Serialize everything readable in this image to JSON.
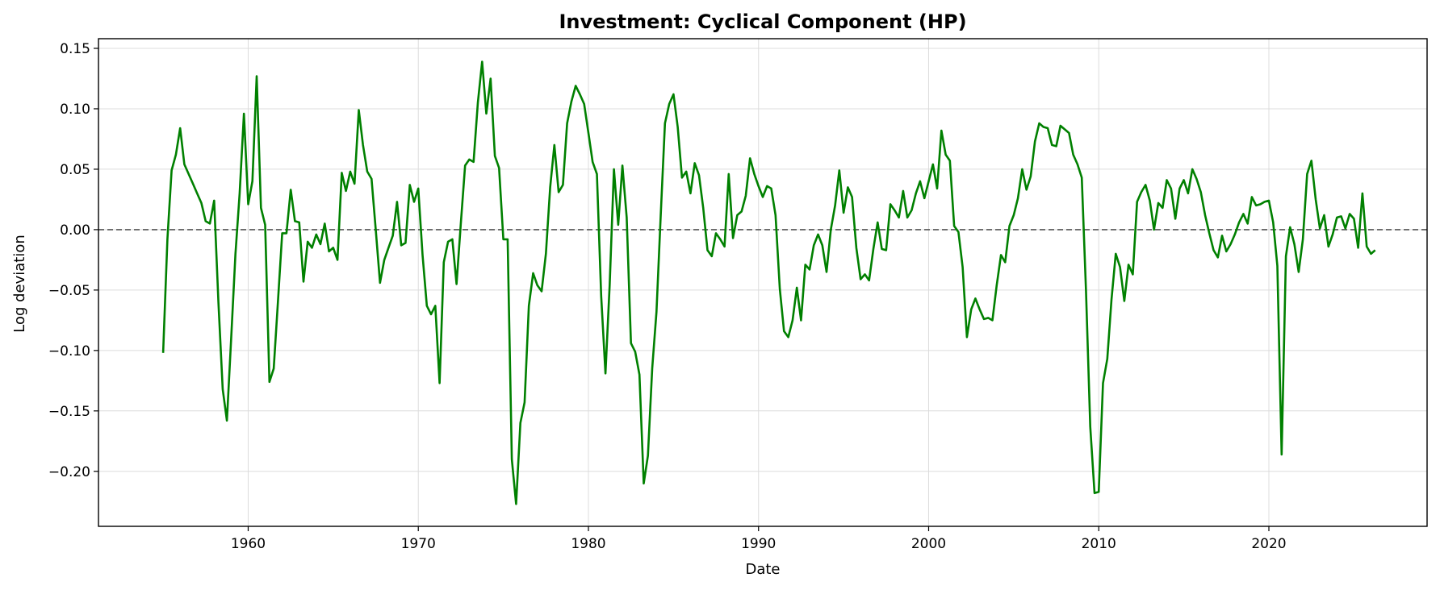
{
  "chart_data": {
    "type": "line",
    "title": "Investment: Cyclical Component (HP)",
    "xlabel": "Date",
    "ylabel": "Log deviation",
    "xlim": [
      1951.2,
      2029.3
    ],
    "ylim": [
      -0.2455,
      0.158
    ],
    "x_ticks": [
      1960,
      1970,
      1980,
      1990,
      2000,
      2010,
      2020
    ],
    "x_tick_labels": [
      "1960",
      "1970",
      "1980",
      "1990",
      "2000",
      "2010",
      "2020"
    ],
    "y_ticks": [
      -0.2,
      -0.15,
      -0.1,
      -0.05,
      0.0,
      0.05,
      0.1,
      0.15
    ],
    "y_tick_labels": [
      "−0.20",
      "−0.15",
      "−0.10",
      "−0.05",
      "0.00",
      "0.05",
      "0.10",
      "0.15"
    ],
    "grid": true,
    "zero_line": {
      "y": 0,
      "style": "dashed",
      "color": "#555555"
    },
    "line_color": "#008000",
    "series": [
      {
        "points": [
          [
            1955.0,
            -0.102
          ],
          [
            1955.25,
            -0.008
          ],
          [
            1955.5,
            0.049
          ],
          [
            1955.75,
            0.062
          ],
          [
            1956.0,
            0.084
          ],
          [
            1956.25,
            0.054
          ],
          [
            1956.5,
            0.046
          ],
          [
            1956.75,
            0.038
          ],
          [
            1957.0,
            0.03
          ],
          [
            1957.25,
            0.022
          ],
          [
            1957.5,
            0.007
          ],
          [
            1957.75,
            0.005
          ],
          [
            1958.0,
            0.024
          ],
          [
            1958.25,
            -0.06
          ],
          [
            1958.5,
            -0.132
          ],
          [
            1958.75,
            -0.158
          ],
          [
            1959.0,
            -0.09
          ],
          [
            1959.25,
            -0.02
          ],
          [
            1959.5,
            0.03
          ],
          [
            1959.75,
            0.096
          ],
          [
            1960.0,
            0.021
          ],
          [
            1960.25,
            0.04
          ],
          [
            1960.5,
            0.127
          ],
          [
            1960.75,
            0.018
          ],
          [
            1961.0,
            0.004
          ],
          [
            1961.25,
            -0.126
          ],
          [
            1961.5,
            -0.115
          ],
          [
            1961.75,
            -0.06
          ],
          [
            1962.0,
            -0.003
          ],
          [
            1962.25,
            -0.003
          ],
          [
            1962.5,
            0.033
          ],
          [
            1962.75,
            0.007
          ],
          [
            1963.0,
            0.006
          ],
          [
            1963.25,
            -0.043
          ],
          [
            1963.5,
            -0.01
          ],
          [
            1963.75,
            -0.015
          ],
          [
            1964.0,
            -0.004
          ],
          [
            1964.25,
            -0.012
          ],
          [
            1964.5,
            0.005
          ],
          [
            1964.75,
            -0.018
          ],
          [
            1965.0,
            -0.015
          ],
          [
            1965.25,
            -0.025
          ],
          [
            1965.5,
            0.047
          ],
          [
            1965.75,
            0.032
          ],
          [
            1966.0,
            0.048
          ],
          [
            1966.25,
            0.038
          ],
          [
            1966.5,
            0.099
          ],
          [
            1966.75,
            0.07
          ],
          [
            1967.0,
            0.048
          ],
          [
            1967.25,
            0.042
          ],
          [
            1967.5,
            0.0
          ],
          [
            1967.75,
            -0.044
          ],
          [
            1968.0,
            -0.025
          ],
          [
            1968.25,
            -0.015
          ],
          [
            1968.5,
            -0.005
          ],
          [
            1968.75,
            0.023
          ],
          [
            1969.0,
            -0.013
          ],
          [
            1969.25,
            -0.011
          ],
          [
            1969.5,
            0.037
          ],
          [
            1969.75,
            0.023
          ],
          [
            1970.0,
            0.034
          ],
          [
            1970.25,
            -0.021
          ],
          [
            1970.5,
            -0.063
          ],
          [
            1970.75,
            -0.07
          ],
          [
            1971.0,
            -0.063
          ],
          [
            1971.25,
            -0.127
          ],
          [
            1971.5,
            -0.027
          ],
          [
            1971.75,
            -0.01
          ],
          [
            1972.0,
            -0.008
          ],
          [
            1972.25,
            -0.045
          ],
          [
            1972.5,
            0.005
          ],
          [
            1972.75,
            0.053
          ],
          [
            1973.0,
            0.058
          ],
          [
            1973.25,
            0.056
          ],
          [
            1973.5,
            0.105
          ],
          [
            1973.75,
            0.139
          ],
          [
            1974.0,
            0.096
          ],
          [
            1974.25,
            0.125
          ],
          [
            1974.5,
            0.061
          ],
          [
            1974.75,
            0.051
          ],
          [
            1975.0,
            -0.008
          ],
          [
            1975.25,
            -0.008
          ],
          [
            1975.5,
            -0.19
          ],
          [
            1975.75,
            -0.227
          ],
          [
            1976.0,
            -0.16
          ],
          [
            1976.25,
            -0.143
          ],
          [
            1976.5,
            -0.063
          ],
          [
            1976.75,
            -0.036
          ],
          [
            1977.0,
            -0.046
          ],
          [
            1977.25,
            -0.051
          ],
          [
            1977.5,
            -0.02
          ],
          [
            1977.75,
            0.035
          ],
          [
            1978.0,
            0.07
          ],
          [
            1978.25,
            0.031
          ],
          [
            1978.5,
            0.037
          ],
          [
            1978.75,
            0.088
          ],
          [
            1979.0,
            0.106
          ],
          [
            1979.25,
            0.119
          ],
          [
            1979.5,
            0.112
          ],
          [
            1979.75,
            0.104
          ],
          [
            1980.0,
            0.08
          ],
          [
            1980.25,
            0.056
          ],
          [
            1980.5,
            0.046
          ],
          [
            1980.75,
            -0.055
          ],
          [
            1981.0,
            -0.119
          ],
          [
            1981.25,
            -0.046
          ],
          [
            1981.5,
            0.05
          ],
          [
            1981.75,
            0.004
          ],
          [
            1982.0,
            0.053
          ],
          [
            1982.25,
            0.01
          ],
          [
            1982.5,
            -0.094
          ],
          [
            1982.75,
            -0.101
          ],
          [
            1983.0,
            -0.12
          ],
          [
            1983.25,
            -0.21
          ],
          [
            1983.5,
            -0.187
          ],
          [
            1983.75,
            -0.115
          ],
          [
            1984.0,
            -0.068
          ],
          [
            1984.25,
            0.011
          ],
          [
            1984.5,
            0.088
          ],
          [
            1984.75,
            0.104
          ],
          [
            1985.0,
            0.112
          ],
          [
            1985.25,
            0.085
          ],
          [
            1985.5,
            0.043
          ],
          [
            1985.75,
            0.048
          ],
          [
            1986.0,
            0.03
          ],
          [
            1986.25,
            0.055
          ],
          [
            1986.5,
            0.045
          ],
          [
            1986.75,
            0.018
          ],
          [
            1987.0,
            -0.017
          ],
          [
            1987.25,
            -0.022
          ],
          [
            1987.5,
            -0.003
          ],
          [
            1987.75,
            -0.008
          ],
          [
            1988.0,
            -0.014
          ],
          [
            1988.25,
            0.046
          ],
          [
            1988.5,
            -0.007
          ],
          [
            1988.75,
            0.012
          ],
          [
            1989.0,
            0.015
          ],
          [
            1989.25,
            0.028
          ],
          [
            1989.5,
            0.059
          ],
          [
            1989.75,
            0.046
          ],
          [
            1990.0,
            0.036
          ],
          [
            1990.25,
            0.027
          ],
          [
            1990.5,
            0.036
          ],
          [
            1990.75,
            0.034
          ],
          [
            1991.0,
            0.012
          ],
          [
            1991.25,
            -0.049
          ],
          [
            1991.5,
            -0.084
          ],
          [
            1991.75,
            -0.089
          ],
          [
            1992.0,
            -0.075
          ],
          [
            1992.25,
            -0.048
          ],
          [
            1992.5,
            -0.075
          ],
          [
            1992.75,
            -0.029
          ],
          [
            1993.0,
            -0.033
          ],
          [
            1993.25,
            -0.013
          ],
          [
            1993.5,
            -0.004
          ],
          [
            1993.75,
            -0.013
          ],
          [
            1994.0,
            -0.035
          ],
          [
            1994.25,
            0.0
          ],
          [
            1994.5,
            0.02
          ],
          [
            1994.75,
            0.049
          ],
          [
            1995.0,
            0.014
          ],
          [
            1995.25,
            0.035
          ],
          [
            1995.5,
            0.027
          ],
          [
            1995.75,
            -0.015
          ],
          [
            1996.0,
            -0.041
          ],
          [
            1996.25,
            -0.037
          ],
          [
            1996.5,
            -0.042
          ],
          [
            1996.75,
            -0.016
          ],
          [
            1997.0,
            0.006
          ],
          [
            1997.25,
            -0.016
          ],
          [
            1997.5,
            -0.017
          ],
          [
            1997.75,
            0.021
          ],
          [
            1998.0,
            0.016
          ],
          [
            1998.25,
            0.01
          ],
          [
            1998.5,
            0.032
          ],
          [
            1998.75,
            0.01
          ],
          [
            1999.0,
            0.016
          ],
          [
            1999.25,
            0.03
          ],
          [
            1999.5,
            0.04
          ],
          [
            1999.75,
            0.026
          ],
          [
            2000.0,
            0.04
          ],
          [
            2000.25,
            0.054
          ],
          [
            2000.5,
            0.034
          ],
          [
            2000.75,
            0.082
          ],
          [
            2001.0,
            0.062
          ],
          [
            2001.25,
            0.057
          ],
          [
            2001.5,
            0.003
          ],
          [
            2001.75,
            -0.002
          ],
          [
            2002.0,
            -0.031
          ],
          [
            2002.25,
            -0.089
          ],
          [
            2002.5,
            -0.066
          ],
          [
            2002.75,
            -0.057
          ],
          [
            2003.0,
            -0.066
          ],
          [
            2003.25,
            -0.074
          ],
          [
            2003.5,
            -0.073
          ],
          [
            2003.75,
            -0.075
          ],
          [
            2004.0,
            -0.046
          ],
          [
            2004.25,
            -0.021
          ],
          [
            2004.5,
            -0.027
          ],
          [
            2004.75,
            0.003
          ],
          [
            2005.0,
            0.012
          ],
          [
            2005.25,
            0.026
          ],
          [
            2005.5,
            0.05
          ],
          [
            2005.75,
            0.033
          ],
          [
            2006.0,
            0.044
          ],
          [
            2006.25,
            0.073
          ],
          [
            2006.5,
            0.088
          ],
          [
            2006.75,
            0.085
          ],
          [
            2007.0,
            0.084
          ],
          [
            2007.25,
            0.07
          ],
          [
            2007.5,
            0.069
          ],
          [
            2007.75,
            0.086
          ],
          [
            2008.0,
            0.083
          ],
          [
            2008.25,
            0.08
          ],
          [
            2008.5,
            0.062
          ],
          [
            2008.75,
            0.054
          ],
          [
            2009.0,
            0.043
          ],
          [
            2009.25,
            -0.05
          ],
          [
            2009.5,
            -0.163
          ],
          [
            2009.75,
            -0.218
          ],
          [
            2010.0,
            -0.217
          ],
          [
            2010.25,
            -0.127
          ],
          [
            2010.5,
            -0.107
          ],
          [
            2010.75,
            -0.058
          ],
          [
            2011.0,
            -0.02
          ],
          [
            2011.25,
            -0.031
          ],
          [
            2011.5,
            -0.059
          ],
          [
            2011.75,
            -0.029
          ],
          [
            2012.0,
            -0.037
          ],
          [
            2012.25,
            0.023
          ],
          [
            2012.5,
            0.031
          ],
          [
            2012.75,
            0.037
          ],
          [
            2013.0,
            0.024
          ],
          [
            2013.25,
            0.0
          ],
          [
            2013.5,
            0.022
          ],
          [
            2013.75,
            0.018
          ],
          [
            2014.0,
            0.041
          ],
          [
            2014.25,
            0.034
          ],
          [
            2014.5,
            0.009
          ],
          [
            2014.75,
            0.034
          ],
          [
            2015.0,
            0.041
          ],
          [
            2015.25,
            0.03
          ],
          [
            2015.5,
            0.05
          ],
          [
            2015.75,
            0.042
          ],
          [
            2016.0,
            0.031
          ],
          [
            2016.25,
            0.012
          ],
          [
            2016.5,
            -0.003
          ],
          [
            2016.75,
            -0.017
          ],
          [
            2017.0,
            -0.023
          ],
          [
            2017.25,
            -0.005
          ],
          [
            2017.5,
            -0.018
          ],
          [
            2017.75,
            -0.012
          ],
          [
            2018.0,
            -0.004
          ],
          [
            2018.25,
            0.006
          ],
          [
            2018.5,
            0.013
          ],
          [
            2018.75,
            0.005
          ],
          [
            2019.0,
            0.027
          ],
          [
            2019.25,
            0.02
          ],
          [
            2019.5,
            0.021
          ],
          [
            2019.75,
            0.023
          ],
          [
            2020.0,
            0.024
          ],
          [
            2020.25,
            0.006
          ],
          [
            2020.5,
            -0.03
          ],
          [
            2020.75,
            -0.186
          ],
          [
            2021.0,
            -0.022
          ],
          [
            2021.25,
            0.002
          ],
          [
            2021.5,
            -0.012
          ],
          [
            2021.75,
            -0.035
          ],
          [
            2022.0,
            -0.008
          ],
          [
            2022.25,
            0.046
          ],
          [
            2022.5,
            0.057
          ],
          [
            2022.75,
            0.025
          ],
          [
            2023.0,
            0.001
          ],
          [
            2023.25,
            0.012
          ],
          [
            2023.5,
            -0.014
          ],
          [
            2023.75,
            -0.004
          ],
          [
            2024.0,
            0.01
          ],
          [
            2024.25,
            0.011
          ],
          [
            2024.5,
            0.001
          ],
          [
            2024.75,
            0.013
          ],
          [
            2025.0,
            0.009
          ],
          [
            2025.25,
            -0.015
          ],
          [
            2025.5,
            0.03
          ],
          [
            2025.75,
            -0.014
          ],
          [
            2026.0,
            -0.02
          ],
          [
            2026.25,
            -0.017
          ]
        ]
      }
    ]
  }
}
